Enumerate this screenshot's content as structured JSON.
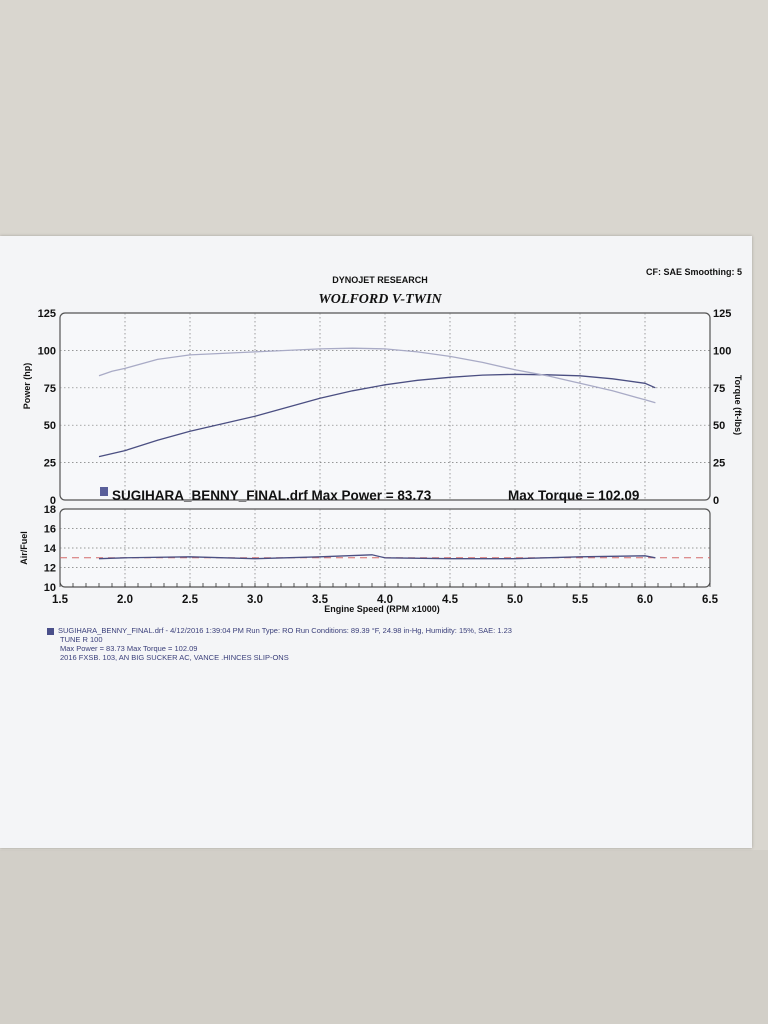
{
  "header": {
    "company": "DYNOJET RESEARCH",
    "title": "WOLFORD V-TWIN",
    "settings": "CF: SAE  Smoothing: 5"
  },
  "legend": {
    "run_label": "SUGIHARA_BENNY_FINAL.drf Max Power = 83.73",
    "torque_label": "Max Torque = 102.09"
  },
  "notes": {
    "line1": "SUGIHARA_BENNY_FINAL.drf - 4/12/2016 1:39:04 PM  Run Type: RO  Run Conditions: 89.39 °F, 24.98 in-Hg,  Humidity: 15%, SAE: 1.23",
    "line2": "TUNE  R  100",
    "line3": "Max Power = 83.73  Max Torque = 102.09",
    "line4": "2016 FXSB. 103, AN BIG SUCKER AC, VANCE .HINCES SLIP-ONS"
  },
  "colors": {
    "power": "#4b4f82",
    "torque": "#a9abc6",
    "afr": "#4b4f82",
    "afr_target": "#d46a6a"
  },
  "chart_data": [
    {
      "type": "line",
      "xlabel": "",
      "ylabel": "Power (hp)",
      "y2label": "Torque (ft-lbs)",
      "xlim": [
        1.5,
        6.5
      ],
      "ylim": [
        0,
        125
      ],
      "y2lim": [
        0,
        125
      ],
      "yticks": [
        0,
        25,
        50,
        75,
        100,
        125
      ],
      "grid": true,
      "series": [
        {
          "name": "Max Power = 83.73",
          "axis": "left",
          "x": [
            1.8,
            2.0,
            2.25,
            2.5,
            2.75,
            3.0,
            3.25,
            3.5,
            3.75,
            4.0,
            4.25,
            4.5,
            4.75,
            5.0,
            5.25,
            5.5,
            5.75,
            6.0,
            6.08
          ],
          "y": [
            29,
            33,
            40,
            46,
            51,
            56,
            62,
            68,
            73,
            77,
            80,
            82,
            83.5,
            84,
            83.7,
            83,
            81,
            78,
            75
          ]
        },
        {
          "name": "Max Torque = 102.09",
          "axis": "right",
          "x": [
            1.8,
            1.9,
            2.0,
            2.25,
            2.5,
            2.75,
            3.0,
            3.25,
            3.5,
            3.75,
            4.0,
            4.25,
            4.5,
            4.75,
            5.0,
            5.25,
            5.5,
            5.75,
            6.0,
            6.08
          ],
          "y": [
            83,
            86,
            88,
            94,
            97,
            98,
            99,
            100,
            101,
            101.5,
            101,
            99,
            96,
            92,
            87,
            83,
            78,
            73,
            67,
            65
          ]
        }
      ]
    },
    {
      "type": "line",
      "xlabel": "Engine Speed (RPM x1000)",
      "ylabel": "Air/Fuel",
      "xlim": [
        1.5,
        6.5
      ],
      "ylim": [
        10,
        18
      ],
      "xticks": [
        1.5,
        2.0,
        2.5,
        3.0,
        3.5,
        4.0,
        4.5,
        5.0,
        5.5,
        6.0,
        6.5
      ],
      "yticks": [
        10,
        12,
        14,
        16,
        18
      ],
      "grid": true,
      "target": 13.0,
      "series": [
        {
          "name": "",
          "x": [
            1.8,
            2.0,
            2.5,
            3.0,
            3.5,
            3.9,
            4.0,
            4.5,
            5.0,
            5.5,
            6.0,
            6.08
          ],
          "y": [
            12.9,
            13.0,
            13.1,
            12.9,
            13.1,
            13.3,
            13.0,
            12.9,
            12.9,
            13.1,
            13.2,
            13.0
          ]
        }
      ]
    }
  ]
}
